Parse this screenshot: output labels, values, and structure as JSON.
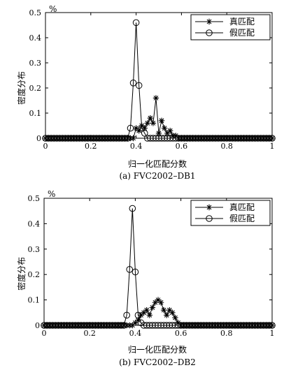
{
  "chart_data": [
    {
      "type": "line",
      "caption": "(a) FVC2002–DB1",
      "xlabel": "归一化匹配分数",
      "ylabel": "密度分布",
      "y_unit": "%",
      "xlim": [
        0,
        1
      ],
      "ylim": [
        0,
        0.5
      ],
      "xticks": [
        "0",
        "0.2",
        "0.4",
        "0.6",
        "0.8",
        "1"
      ],
      "yticks": [
        "0",
        "0.1",
        "0.2",
        "0.3",
        "0.4",
        "0.5"
      ],
      "grid": false,
      "legend_position": "top-right",
      "series": [
        {
          "name": "真匹配",
          "marker": "asterisk",
          "x": [
            0.0,
            0.0125,
            0.025,
            0.0375,
            0.05,
            0.0625,
            0.075,
            0.0875,
            0.1,
            0.1125,
            0.125,
            0.1375,
            0.15,
            0.1625,
            0.175,
            0.1875,
            0.2,
            0.2125,
            0.225,
            0.2375,
            0.25,
            0.2625,
            0.275,
            0.2875,
            0.3,
            0.3125,
            0.325,
            0.3375,
            0.35,
            0.3625,
            0.375,
            0.3875,
            0.4,
            0.4125,
            0.425,
            0.4375,
            0.45,
            0.4625,
            0.475,
            0.4875,
            0.5,
            0.5125,
            0.525,
            0.5375,
            0.55,
            0.5625,
            0.575,
            0.5875,
            0.6,
            0.6125,
            0.625,
            0.6375,
            0.65,
            0.6625,
            0.675,
            0.6875,
            0.7,
            0.7125,
            0.725,
            0.7375,
            0.75,
            0.7625,
            0.775,
            0.7875,
            0.8,
            0.8125,
            0.825,
            0.8375,
            0.85,
            0.8625,
            0.875,
            0.8875,
            0.9,
            0.9125,
            0.925,
            0.9375,
            0.95,
            0.9625,
            0.975,
            0.9875,
            1.0
          ],
          "values": [
            0,
            0,
            0,
            0,
            0,
            0,
            0,
            0,
            0,
            0,
            0,
            0,
            0,
            0,
            0,
            0,
            0,
            0,
            0,
            0,
            0,
            0,
            0,
            0,
            0,
            0,
            0,
            0,
            0,
            0,
            0,
            0,
            0.04,
            0.03,
            0.05,
            0.04,
            0.06,
            0.08,
            0.06,
            0.16,
            0.02,
            0.07,
            0.04,
            0.02,
            0.03,
            0.01,
            0.01,
            0,
            0,
            0,
            0,
            0,
            0,
            0,
            0,
            0,
            0,
            0,
            0,
            0,
            0,
            0,
            0,
            0,
            0,
            0,
            0,
            0,
            0,
            0,
            0,
            0,
            0,
            0,
            0,
            0,
            0,
            0,
            0,
            0,
            0
          ]
        },
        {
          "name": "假匹配",
          "marker": "circle",
          "x": [
            0.0,
            0.0125,
            0.025,
            0.0375,
            0.05,
            0.0625,
            0.075,
            0.0875,
            0.1,
            0.1125,
            0.125,
            0.1375,
            0.15,
            0.1625,
            0.175,
            0.1875,
            0.2,
            0.2125,
            0.225,
            0.2375,
            0.25,
            0.2625,
            0.275,
            0.2875,
            0.3,
            0.3125,
            0.325,
            0.3375,
            0.35,
            0.3625,
            0.375,
            0.3875,
            0.4,
            0.4125,
            0.425,
            0.4375,
            0.45,
            0.4625,
            0.475,
            0.4875,
            0.5,
            0.5125,
            0.525,
            0.5375,
            0.55,
            0.5625,
            0.575,
            0.5875,
            0.6,
            0.6125,
            0.625,
            0.6375,
            0.65,
            0.6625,
            0.675,
            0.6875,
            0.7,
            0.7125,
            0.725,
            0.7375,
            0.75,
            0.7625,
            0.775,
            0.7875,
            0.8,
            0.8125,
            0.825,
            0.8375,
            0.85,
            0.8625,
            0.875,
            0.8875,
            0.9,
            0.9125,
            0.925,
            0.9375,
            0.95,
            0.9625,
            0.975,
            0.9875,
            1.0
          ],
          "values": [
            0,
            0,
            0,
            0,
            0,
            0,
            0,
            0,
            0,
            0,
            0,
            0,
            0,
            0,
            0,
            0,
            0,
            0,
            0,
            0,
            0,
            0,
            0,
            0,
            0,
            0,
            0,
            0,
            0,
            0,
            0.04,
            0.22,
            0.46,
            0.21,
            0.04,
            0.02,
            0,
            0,
            0,
            0,
            0,
            0,
            0,
            0,
            0,
            0,
            0,
            0,
            0,
            0,
            0,
            0,
            0,
            0,
            0,
            0,
            0,
            0,
            0,
            0,
            0,
            0,
            0,
            0,
            0,
            0,
            0,
            0,
            0,
            0,
            0,
            0,
            0,
            0,
            0,
            0,
            0,
            0,
            0,
            0,
            0
          ]
        }
      ]
    },
    {
      "type": "line",
      "caption": "(b) FVC2002–DB2",
      "xlabel": "归一化匹配分数",
      "ylabel": "密度分布",
      "y_unit": "%",
      "xlim": [
        0,
        1
      ],
      "ylim": [
        0,
        0.5
      ],
      "xticks": [
        "0",
        "0.2",
        "0.4",
        "0.6",
        "0.8",
        "1"
      ],
      "yticks": [
        "0",
        "0.1",
        "0.2",
        "0.3",
        "0.4",
        "0.5"
      ],
      "grid": false,
      "legend_position": "top-right",
      "series": [
        {
          "name": "真匹配",
          "marker": "asterisk",
          "x": [
            0.0,
            0.0125,
            0.025,
            0.0375,
            0.05,
            0.0625,
            0.075,
            0.0875,
            0.1,
            0.1125,
            0.125,
            0.1375,
            0.15,
            0.1625,
            0.175,
            0.1875,
            0.2,
            0.2125,
            0.225,
            0.2375,
            0.25,
            0.2625,
            0.275,
            0.2875,
            0.3,
            0.3125,
            0.325,
            0.3375,
            0.35,
            0.3625,
            0.375,
            0.3875,
            0.4,
            0.4125,
            0.425,
            0.4375,
            0.45,
            0.4625,
            0.475,
            0.4875,
            0.5,
            0.5125,
            0.525,
            0.5375,
            0.55,
            0.5625,
            0.575,
            0.5875,
            0.6,
            0.6125,
            0.625,
            0.6375,
            0.65,
            0.6625,
            0.675,
            0.6875,
            0.7,
            0.7125,
            0.725,
            0.7375,
            0.75,
            0.7625,
            0.775,
            0.7875,
            0.8,
            0.8125,
            0.825,
            0.8375,
            0.85,
            0.8625,
            0.875,
            0.8875,
            0.9,
            0.9125,
            0.925,
            0.9375,
            0.95,
            0.9625,
            0.975,
            0.9875,
            1.0
          ],
          "values": [
            0,
            0,
            0,
            0,
            0,
            0,
            0,
            0,
            0,
            0,
            0,
            0,
            0,
            0,
            0,
            0,
            0,
            0,
            0,
            0,
            0,
            0,
            0,
            0,
            0,
            0,
            0,
            0,
            0,
            0,
            0,
            0,
            0.01,
            0.02,
            0.04,
            0.05,
            0.06,
            0.04,
            0.07,
            0.09,
            0.1,
            0.09,
            0.06,
            0.04,
            0.06,
            0.05,
            0.03,
            0.01,
            0,
            0,
            0,
            0,
            0,
            0,
            0,
            0,
            0,
            0,
            0,
            0,
            0,
            0,
            0,
            0,
            0,
            0,
            0,
            0,
            0,
            0,
            0,
            0,
            0,
            0,
            0,
            0,
            0,
            0,
            0,
            0,
            0
          ]
        },
        {
          "name": "假匹配",
          "marker": "circle",
          "x": [
            0.0,
            0.0125,
            0.025,
            0.0375,
            0.05,
            0.0625,
            0.075,
            0.0875,
            0.1,
            0.1125,
            0.125,
            0.1375,
            0.15,
            0.1625,
            0.175,
            0.1875,
            0.2,
            0.2125,
            0.225,
            0.2375,
            0.25,
            0.2625,
            0.275,
            0.2875,
            0.3,
            0.3125,
            0.325,
            0.3375,
            0.35,
            0.3625,
            0.375,
            0.3875,
            0.4,
            0.4125,
            0.425,
            0.4375,
            0.45,
            0.4625,
            0.475,
            0.4875,
            0.5,
            0.5125,
            0.525,
            0.5375,
            0.55,
            0.5625,
            0.575,
            0.5875,
            0.6,
            0.6125,
            0.625,
            0.6375,
            0.65,
            0.6625,
            0.675,
            0.6875,
            0.7,
            0.7125,
            0.725,
            0.7375,
            0.75,
            0.7625,
            0.775,
            0.7875,
            0.8,
            0.8125,
            0.825,
            0.8375,
            0.85,
            0.8625,
            0.875,
            0.8875,
            0.9,
            0.9125,
            0.925,
            0.9375,
            0.95,
            0.9625,
            0.975,
            0.9875,
            1.0
          ],
          "values": [
            0,
            0,
            0,
            0,
            0,
            0,
            0,
            0,
            0,
            0,
            0,
            0,
            0,
            0,
            0,
            0,
            0,
            0,
            0,
            0,
            0,
            0,
            0,
            0,
            0,
            0,
            0,
            0,
            0,
            0.04,
            0.22,
            0.46,
            0.21,
            0.04,
            0.01,
            0,
            0,
            0,
            0,
            0,
            0,
            0,
            0,
            0,
            0,
            0,
            0,
            0,
            0,
            0,
            0,
            0,
            0,
            0,
            0,
            0,
            0,
            0,
            0,
            0,
            0,
            0,
            0,
            0,
            0,
            0,
            0,
            0,
            0,
            0,
            0,
            0,
            0,
            0,
            0,
            0,
            0,
            0,
            0,
            0,
            0
          ]
        }
      ]
    }
  ]
}
